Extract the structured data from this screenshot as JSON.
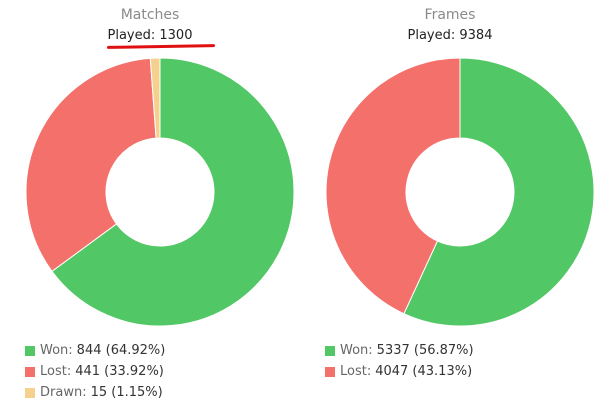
{
  "chart_data": [
    {
      "type": "pie",
      "title": "Matches",
      "subtitle": "Played: 1300",
      "donut": true,
      "categories": [
        "Won",
        "Lost",
        "Drawn"
      ],
      "values": [
        844,
        441,
        15
      ],
      "percent_labels": [
        "(64.92%)",
        "(33.92%)",
        "(1.15%)"
      ],
      "colors": [
        "#51c765",
        "#f4706b",
        "#f5d190"
      ],
      "legend": "bottom-left"
    },
    {
      "type": "pie",
      "title": "Frames",
      "subtitle": "Played: 9384",
      "donut": true,
      "categories": [
        "Won",
        "Lost"
      ],
      "values": [
        5337,
        4047
      ],
      "percent_labels": [
        "(56.87%)",
        "(43.13%)"
      ],
      "colors": [
        "#51c765",
        "#f4706b"
      ],
      "legend": "bottom-left"
    }
  ]
}
